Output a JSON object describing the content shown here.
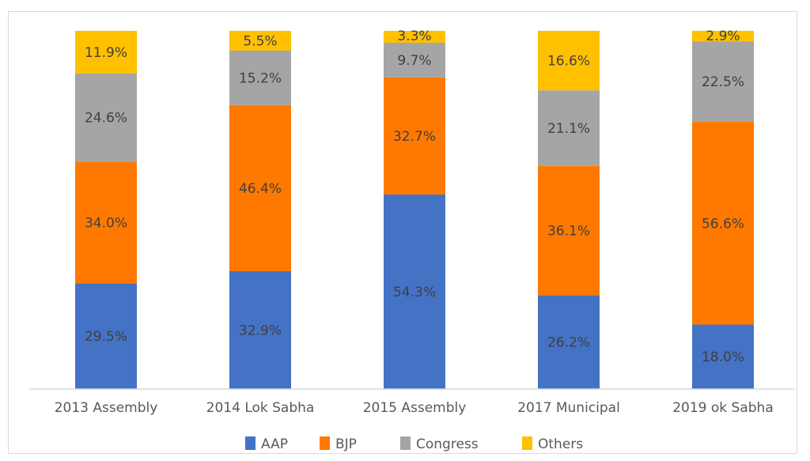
{
  "chart_data": {
    "type": "bar",
    "stacked": true,
    "percent_stacked": true,
    "title": "",
    "xlabel": "",
    "ylabel": "",
    "ylim": [
      0,
      100
    ],
    "grid": false,
    "legend_position": "bottom",
    "categories": [
      "2013 Assembly",
      "2014 Lok Sabha",
      "2015 Assembly",
      "2017 Municipal",
      "2019 ok Sabha"
    ],
    "series": [
      {
        "name": "AAP",
        "color": "#4472C4",
        "values": [
          29.5,
          32.9,
          54.3,
          26.2,
          18.0
        ],
        "labels": [
          "29.5%",
          "32.9%",
          "54.3%",
          "26.2%",
          "18.0%"
        ]
      },
      {
        "name": "BJP",
        "color": "#FF7900",
        "values": [
          34.0,
          46.4,
          32.7,
          36.1,
          56.6
        ],
        "labels": [
          "34.0%",
          "46.4%",
          "32.7%",
          "36.1%",
          "56.6%"
        ]
      },
      {
        "name": "Congress",
        "color": "#A5A5A5",
        "values": [
          24.6,
          15.2,
          9.7,
          21.1,
          22.5
        ],
        "labels": [
          "24.6%",
          "15.2%",
          "9.7%",
          "21.1%",
          "22.5%"
        ]
      },
      {
        "name": "Others",
        "color": "#FFC000",
        "values": [
          11.9,
          5.5,
          3.3,
          16.6,
          2.9
        ],
        "labels": [
          "11.9%",
          "5.5%",
          "3.3%",
          "16.6%",
          "2.9%"
        ]
      }
    ]
  }
}
